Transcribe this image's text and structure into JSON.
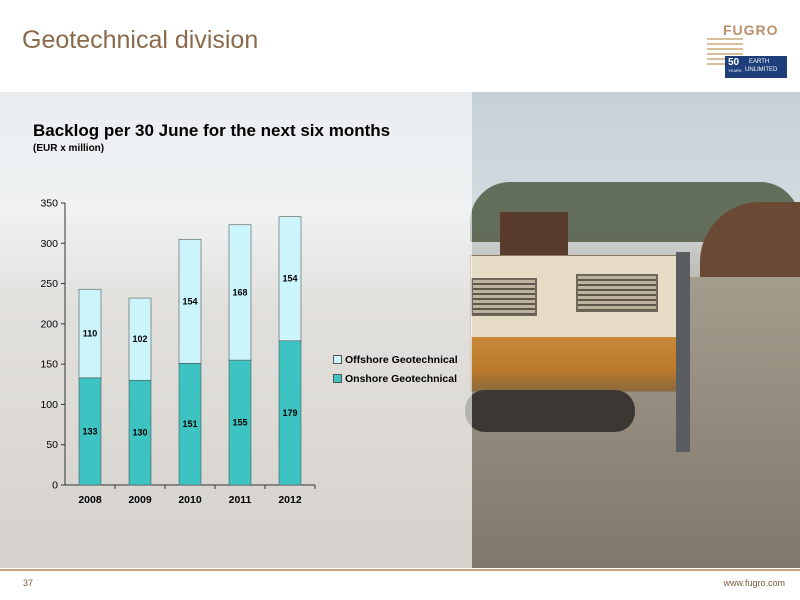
{
  "page": {
    "title": "Geotechnical division",
    "page_number": "37",
    "footer_url": "www.fugro.com"
  },
  "logo": {
    "word": "FUGRO",
    "badge_number": "50",
    "badge_years": "YEARS",
    "badge_line1": "EARTH",
    "badge_line2": "UNLIMITED"
  },
  "colors": {
    "title": "#8a6a4a",
    "offshore": "#ccf5fb",
    "onshore": "#3dc4c2",
    "logo_blue": "#1f3f7a",
    "logo_tan": "#b8906a",
    "footer_rule": "#c6a27a"
  },
  "chart_data": {
    "type": "bar",
    "stacked": true,
    "title": "Backlog per 30 June for the next six months",
    "subtitle": "(EUR x million)",
    "categories": [
      "2008",
      "2009",
      "2010",
      "2011",
      "2012"
    ],
    "series": [
      {
        "name": "Onshore Geotechnical",
        "values": [
          133,
          130,
          151,
          155,
          179
        ],
        "color": "#3dc4c2"
      },
      {
        "name": "Offshore Geotechnical",
        "values": [
          110,
          102,
          154,
          168,
          154
        ],
        "color": "#ccf5fb"
      }
    ],
    "ylim": [
      0,
      350
    ],
    "yticks": [
      0,
      50,
      100,
      150,
      200,
      250,
      300,
      350
    ],
    "grid": false,
    "legend_position": "right"
  }
}
